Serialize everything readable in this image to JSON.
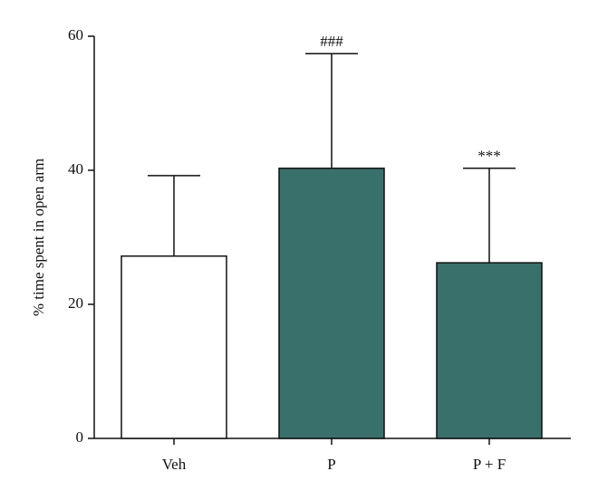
{
  "chart_data": {
    "type": "bar",
    "y_label": "% time spent in open arm",
    "categories": [
      "Veh",
      "P",
      "P + F"
    ],
    "values": [
      27.2,
      40.3,
      26.2
    ],
    "errors": [
      12.0,
      17.1,
      14.1
    ],
    "colors": [
      "#ffffff",
      "#3a706b",
      "#3a706b"
    ],
    "annotations": [
      null,
      "###",
      "***"
    ],
    "ylim": [
      0,
      60
    ],
    "yticks": [
      0,
      20,
      40,
      60
    ],
    "grid": false
  }
}
